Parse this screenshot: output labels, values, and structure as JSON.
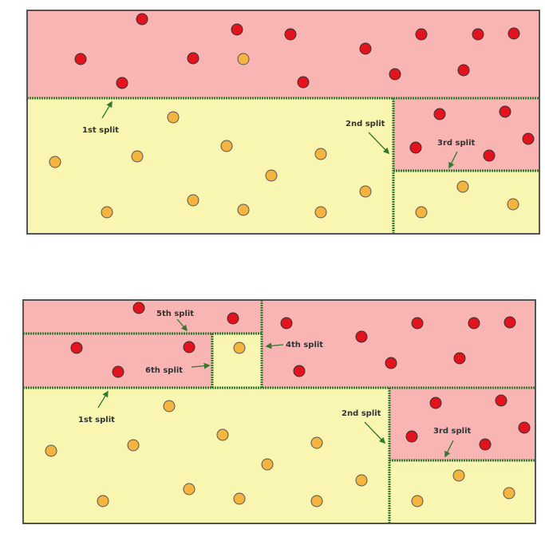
{
  "colors": {
    "red_region": "#f9b4b4",
    "yellow_region": "#f8f6b0",
    "red_point": "#e3131d",
    "orange_point": "#f4b43f",
    "split_line": "#2f7a2f",
    "border": "#555555",
    "arrow": "#2f7a2f"
  },
  "diagrams": [
    {
      "name": "three-splits",
      "labels": {
        "split1": "1st split",
        "split2": "2nd split",
        "split3": "3rd split"
      }
    },
    {
      "name": "six-splits",
      "labels": {
        "split1": "1st split",
        "split2": "2nd split",
        "split3": "3rd split",
        "split4": "4th split",
        "split5": "5th split",
        "split6": "6th split"
      }
    }
  ]
}
